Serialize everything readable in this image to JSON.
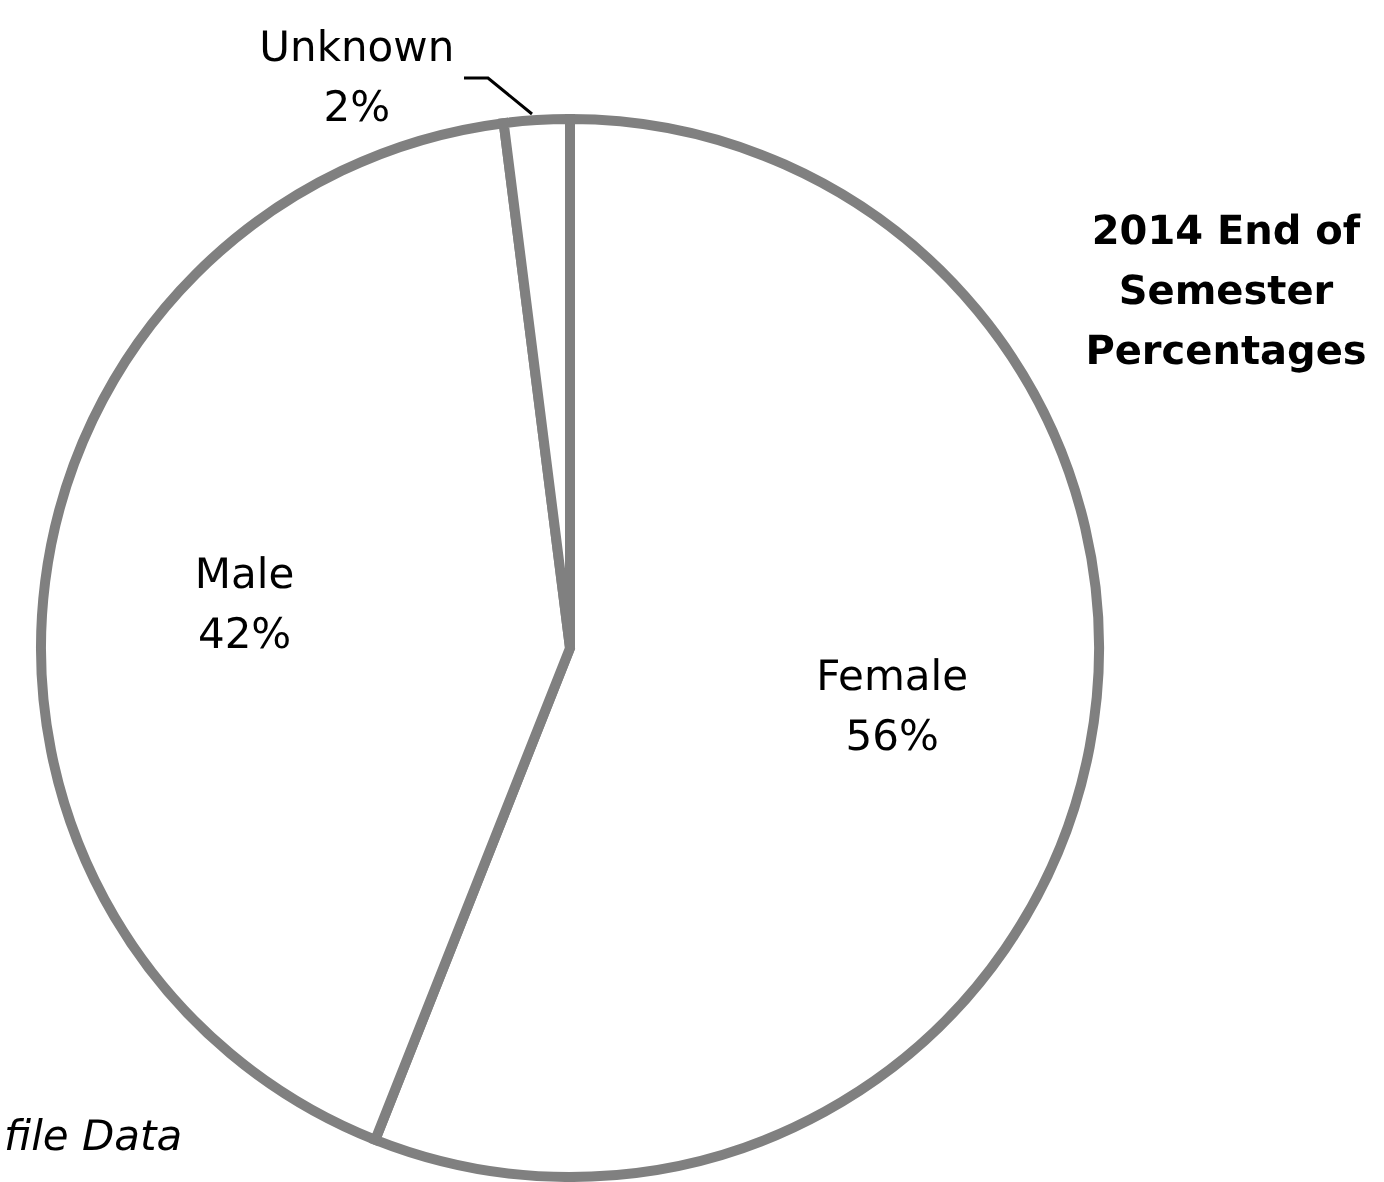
{
  "chart_data": {
    "type": "pie",
    "title": "2014 End of Semester Percentages",
    "categories": [
      "Female",
      "Male",
      "Unknown"
    ],
    "values": [
      56,
      42,
      2
    ],
    "value_labels": [
      "56%",
      "42%",
      "2%"
    ],
    "colors": [
      "#ffffff",
      "#ffffff",
      "#ffffff"
    ],
    "legend": false,
    "annotations": [
      "file Data"
    ]
  }
}
